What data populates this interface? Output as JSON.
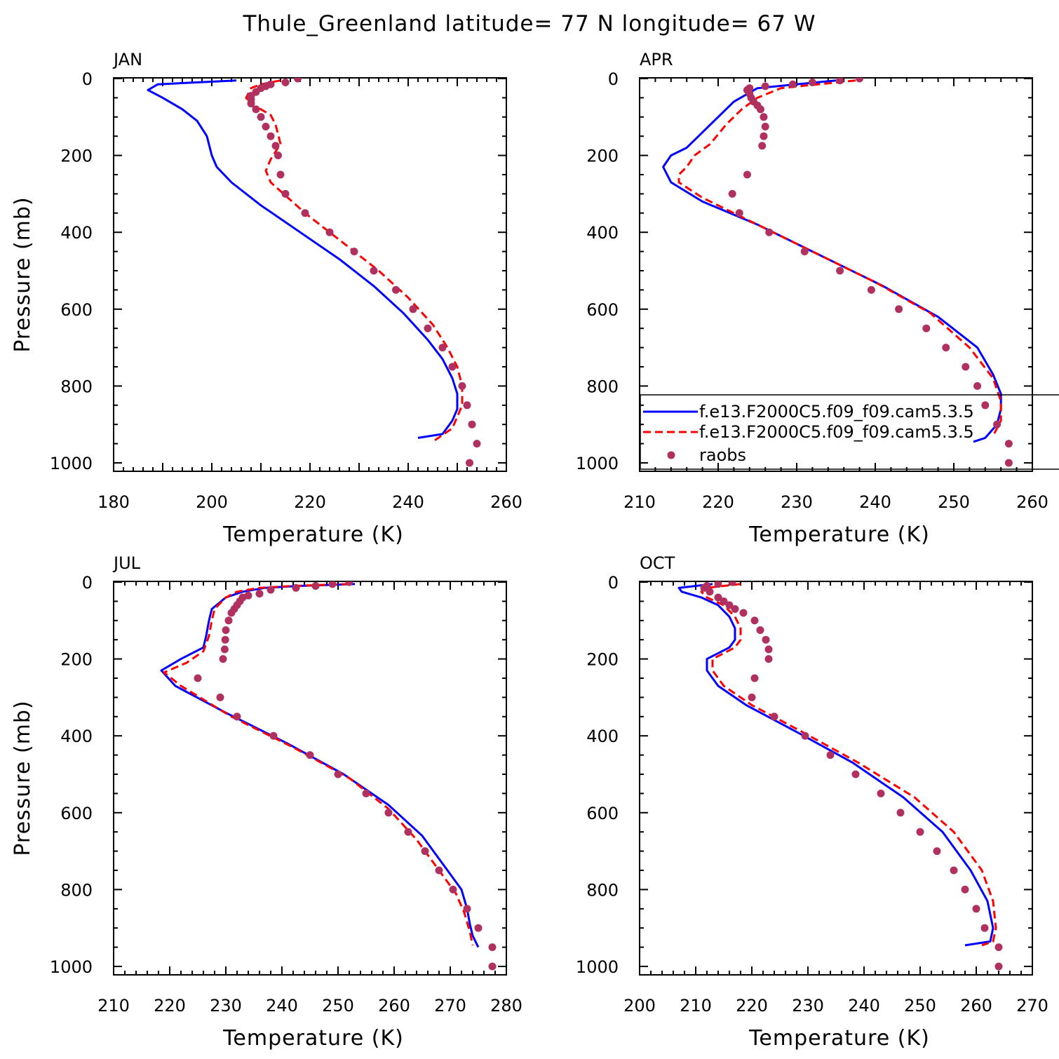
{
  "figure": {
    "title": "Thule_Greenland  latitude= 77 N longitude= 67 W"
  },
  "legend": {
    "entries": [
      {
        "label": "f.e13.F2000C5.f09_f09.cam5.3.5",
        "style": "solid",
        "color": "#0000ff"
      },
      {
        "label": "f.e13.F2000C5.f09_f09.cam5.3.5",
        "style": "dashed",
        "color": "#ff0000"
      },
      {
        "label": "raobs",
        "style": "dot",
        "color": "#b03060"
      }
    ]
  },
  "chart_data": [
    {
      "type": "line",
      "title": "JAN",
      "xlabel": "Temperature (K)",
      "ylabel": "Pressure (mb)",
      "xlim": [
        180,
        260
      ],
      "ylim": [
        1000,
        0
      ],
      "xticks": [
        180,
        200,
        220,
        240,
        260
      ],
      "yticks": [
        0,
        200,
        400,
        600,
        800,
        1000
      ],
      "series": [
        {
          "style": "solid",
          "color": "#0000ff",
          "x": [
            205,
            189,
            187,
            190,
            194,
            197,
            199,
            200,
            201,
            204,
            210,
            218,
            226,
            233,
            239,
            244,
            247,
            249,
            250,
            250,
            249,
            247,
            242
          ],
          "y": [
            5,
            15,
            30,
            50,
            80,
            110,
            150,
            200,
            230,
            270,
            330,
            400,
            470,
            540,
            610,
            680,
            730,
            780,
            820,
            860,
            890,
            925,
            935
          ]
        },
        {
          "style": "dashed",
          "color": "#ff0000",
          "x": [
            214,
            210,
            208,
            207,
            208,
            210,
            212,
            213,
            214,
            212,
            211,
            212,
            219,
            227,
            234,
            240,
            245,
            248,
            250,
            251,
            251,
            249,
            245
          ],
          "y": [
            5,
            15,
            25,
            50,
            70,
            80,
            95,
            120,
            170,
            210,
            240,
            270,
            350,
            430,
            500,
            570,
            640,
            700,
            750,
            800,
            850,
            910,
            945
          ]
        },
        {
          "style": "dot",
          "color": "#b03060",
          "x": [
            217.5,
            215,
            212,
            211,
            210,
            209,
            208,
            208,
            208,
            209,
            210,
            211,
            212,
            213,
            213.5,
            214,
            215,
            219,
            224,
            229,
            233,
            237.5,
            241,
            244,
            247,
            249,
            251,
            252,
            253,
            254,
            252.5
          ],
          "y": [
            0,
            10,
            15,
            20,
            25,
            35,
            45,
            55,
            65,
            80,
            100,
            125,
            150,
            175,
            200,
            250,
            300,
            350,
            400,
            450,
            500,
            550,
            600,
            650,
            700,
            750,
            800,
            850,
            900,
            950,
            1000
          ]
        }
      ]
    },
    {
      "type": "line",
      "title": "APR",
      "xlabel": "Temperature (K)",
      "ylabel": "",
      "xlim": [
        210,
        260
      ],
      "ylim": [
        1000,
        0
      ],
      "xticks": [
        210,
        220,
        230,
        240,
        250,
        260
      ],
      "yticks": [
        0,
        200,
        400,
        600,
        800,
        1000
      ],
      "series": [
        {
          "style": "solid",
          "color": "#0000ff",
          "x": [
            235,
            225,
            222,
            220,
            218,
            216,
            214,
            213,
            214,
            218,
            225,
            233,
            241,
            248,
            253,
            255,
            256,
            256,
            255.5,
            254,
            252.5
          ],
          "y": [
            5,
            25,
            60,
            100,
            140,
            180,
            200,
            230,
            270,
            320,
            380,
            460,
            540,
            620,
            700,
            770,
            820,
            860,
            900,
            935,
            945
          ]
        },
        {
          "style": "dashed",
          "color": "#ff0000",
          "x": [
            237.5,
            228,
            225,
            223,
            221,
            219,
            217,
            216,
            215,
            215,
            218,
            224,
            232,
            240,
            247,
            252,
            255,
            256,
            256,
            255
          ],
          "y": [
            5,
            25,
            50,
            80,
            120,
            170,
            200,
            230,
            250,
            270,
            310,
            370,
            450,
            530,
            610,
            700,
            780,
            840,
            890,
            930
          ]
        },
        {
          "style": "dot",
          "color": "#b03060",
          "x": [
            238,
            235.5,
            232,
            229.5,
            226,
            224,
            223.7,
            224,
            224.2,
            224.5,
            225,
            225.4,
            225.8,
            226,
            225.8,
            225.6,
            223.7,
            221.8,
            222.7,
            226.5,
            231,
            235.5,
            239.5,
            243,
            246.5,
            249,
            251.5,
            253,
            254,
            255.5,
            257,
            257
          ],
          "y": [
            0,
            5,
            10,
            15,
            20,
            25,
            30,
            40,
            50,
            60,
            70,
            80,
            100,
            125,
            150,
            175,
            250,
            300,
            350,
            400,
            450,
            500,
            550,
            600,
            650,
            700,
            750,
            800,
            850,
            900,
            950,
            1000
          ]
        }
      ]
    },
    {
      "type": "line",
      "title": "JUL",
      "xlabel": "Temperature (K)",
      "ylabel": "Pressure (mb)",
      "xlim": [
        210,
        280
      ],
      "ylim": [
        1000,
        0
      ],
      "xticks": [
        210,
        220,
        230,
        240,
        250,
        260,
        270,
        280
      ],
      "yticks": [
        0,
        200,
        400,
        600,
        800,
        1000
      ],
      "series": [
        {
          "style": "solid",
          "color": "#0000ff",
          "x": [
            253,
            243,
            237,
            233,
            230,
            227.5,
            227,
            226.5,
            226,
            222,
            218.5,
            221,
            230,
            241,
            251,
            259,
            265,
            269,
            272,
            273,
            273.5,
            274,
            275
          ],
          "y": [
            5,
            10,
            15,
            25,
            40,
            70,
            100,
            140,
            170,
            200,
            230,
            270,
            340,
            420,
            500,
            580,
            660,
            740,
            800,
            850,
            890,
            920,
            950
          ]
        },
        {
          "style": "dashed",
          "color": "#ff0000",
          "x": [
            252,
            242,
            236,
            232,
            230,
            228,
            227.5,
            227,
            226,
            223,
            219,
            222,
            231,
            242,
            252,
            259,
            264,
            268,
            271,
            272.5,
            273.5,
            274
          ],
          "y": [
            5,
            10,
            15,
            25,
            40,
            70,
            100,
            140,
            180,
            210,
            235,
            270,
            350,
            430,
            510,
            590,
            670,
            750,
            810,
            860,
            910,
            945
          ]
        },
        {
          "style": "dot",
          "color": "#b03060",
          "x": [
            252,
            249,
            246,
            242.5,
            238,
            236,
            234,
            233,
            232.5,
            232,
            231.5,
            231,
            230.5,
            230,
            229.9,
            229.8,
            229.5,
            225,
            229,
            232,
            238.5,
            245,
            250,
            255,
            259,
            262.5,
            265.5,
            268,
            270.5,
            273,
            275,
            277.5,
            277.5
          ],
          "y": [
            0,
            5,
            10,
            15,
            20,
            30,
            35,
            40,
            50,
            60,
            70,
            80,
            100,
            125,
            150,
            175,
            200,
            250,
            300,
            350,
            400,
            450,
            500,
            550,
            600,
            650,
            700,
            750,
            800,
            850,
            900,
            950,
            1000
          ]
        }
      ]
    },
    {
      "type": "line",
      "title": "OCT",
      "xlabel": "Temperature (K)",
      "ylabel": "",
      "xlim": [
        200,
        270
      ],
      "ylim": [
        1000,
        0
      ],
      "xticks": [
        200,
        210,
        220,
        230,
        240,
        250,
        260,
        270
      ],
      "yticks": [
        0,
        200,
        400,
        600,
        800,
        1000
      ],
      "series": [
        {
          "style": "solid",
          "color": "#0000ff",
          "x": [
            213,
            207,
            207.5,
            211,
            214,
            216,
            217,
            217,
            216,
            212,
            212,
            214,
            219,
            228,
            238,
            247,
            254,
            259,
            262,
            263,
            262.5,
            258
          ],
          "y": [
            5,
            15,
            25,
            40,
            60,
            90,
            120,
            150,
            170,
            200,
            230,
            270,
            320,
            390,
            470,
            560,
            650,
            750,
            830,
            900,
            935,
            945
          ]
        },
        {
          "style": "dashed",
          "color": "#ff0000",
          "x": [
            218,
            212,
            211,
            212,
            215,
            217,
            218,
            218,
            217,
            213,
            213,
            215,
            220,
            229,
            239,
            249,
            256,
            261,
            263,
            263.5,
            263,
            261
          ],
          "y": [
            5,
            15,
            25,
            40,
            60,
            90,
            120,
            150,
            170,
            200,
            230,
            270,
            320,
            390,
            470,
            560,
            650,
            750,
            830,
            900,
            935,
            945
          ]
        },
        {
          "style": "dot",
          "color": "#b03060",
          "x": [
            216.5,
            214,
            212,
            211.5,
            212.5,
            214,
            215,
            216,
            217,
            218.5,
            220.5,
            221.5,
            222.5,
            223,
            223,
            220.5,
            220,
            224,
            229.5,
            234,
            238.5,
            243,
            246.5,
            250,
            253,
            256,
            258,
            260,
            261.5,
            264,
            264
          ],
          "y": [
            0,
            5,
            10,
            15,
            25,
            40,
            50,
            60,
            70,
            80,
            100,
            125,
            150,
            175,
            200,
            250,
            300,
            350,
            400,
            450,
            500,
            550,
            600,
            650,
            700,
            750,
            800,
            850,
            900,
            950,
            1000
          ]
        }
      ]
    }
  ]
}
